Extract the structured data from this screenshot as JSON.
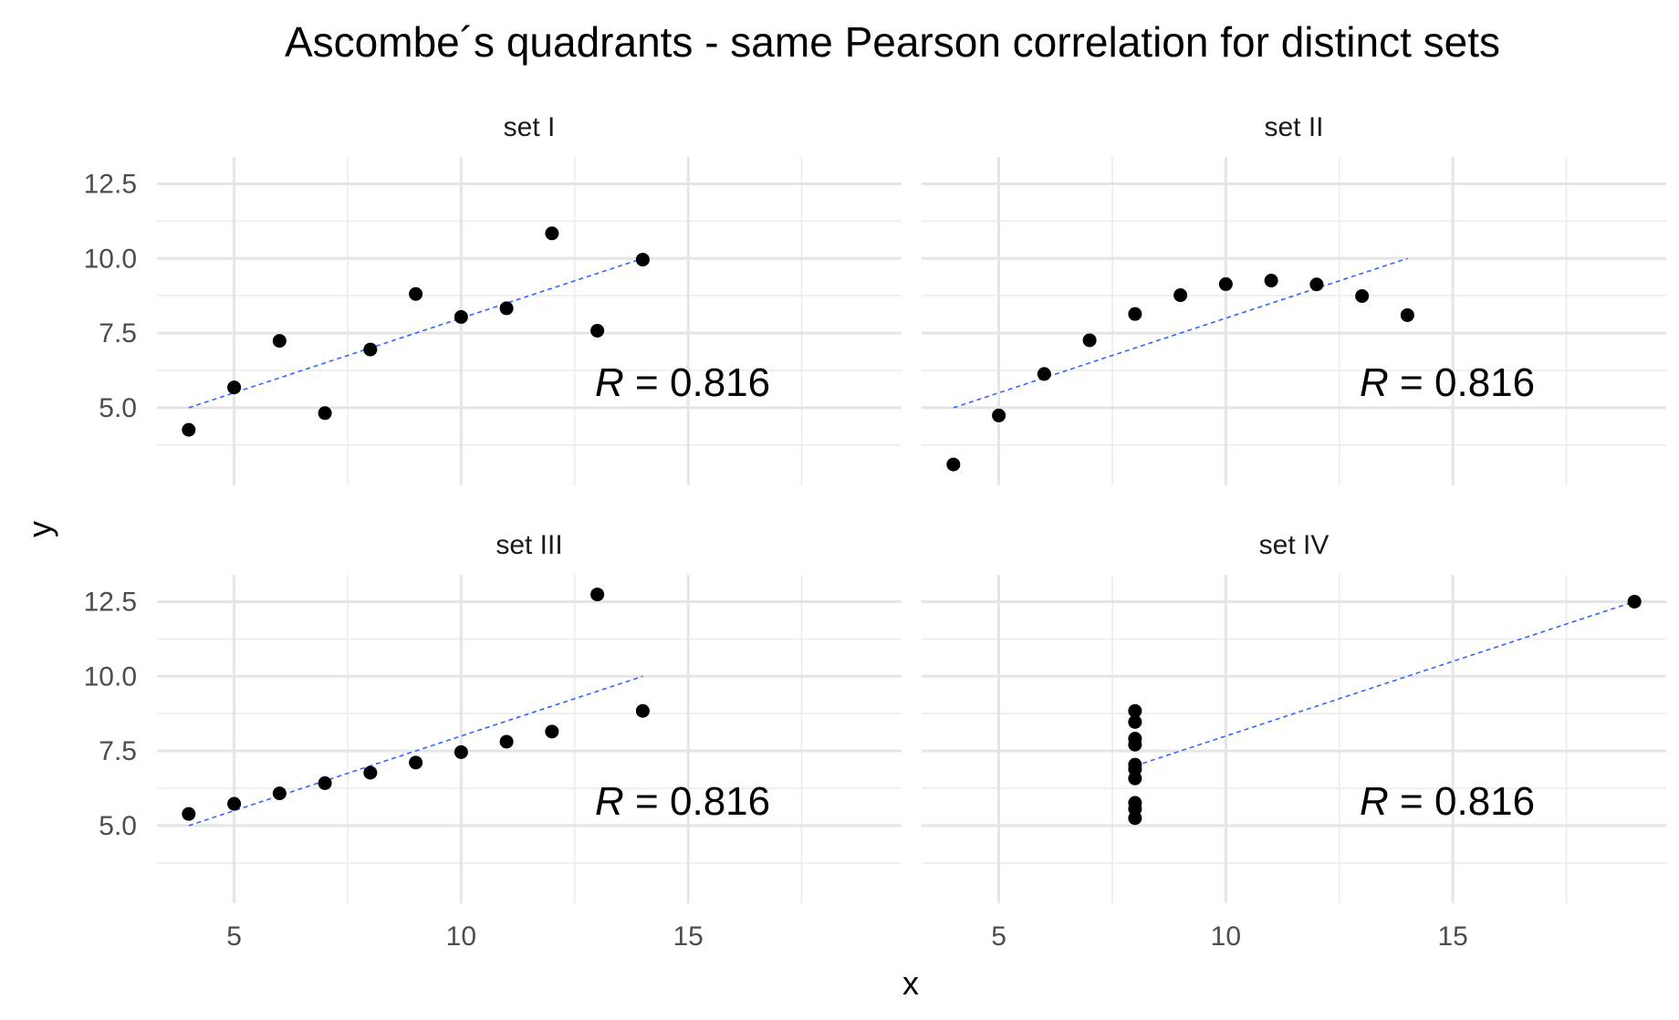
{
  "chart_data": {
    "type": "scatter",
    "title": "Ascombe´s quadrants - same Pearson correlation for distinct sets",
    "xlabel": "x",
    "ylabel": "y",
    "xlim": [
      3.3,
      19.7
    ],
    "ylim": [
      2.4,
      13.4
    ],
    "x_ticks": [
      5,
      10,
      15
    ],
    "y_ticks": [
      5.0,
      7.5,
      10.0,
      12.5
    ],
    "x_tick_labels": [
      "5",
      "10",
      "15"
    ],
    "y_tick_labels": [
      "5.0",
      "7.5",
      "10.0",
      "12.5"
    ],
    "grid": true,
    "legend": "none",
    "point_color": "#000000",
    "fit_line_color": "#3366FF",
    "panels": [
      {
        "name": "set I",
        "annotation": {
          "var": "R",
          "eq": "=",
          "value": "0.816"
        },
        "x": [
          10,
          8,
          13,
          9,
          11,
          14,
          6,
          4,
          12,
          7,
          5
        ],
        "y": [
          8.04,
          6.95,
          7.58,
          8.81,
          8.33,
          9.96,
          7.24,
          4.26,
          10.84,
          4.82,
          5.68
        ],
        "fit": {
          "x": [
            4,
            14
          ],
          "y": [
            5.0,
            10.0
          ]
        }
      },
      {
        "name": "set II",
        "annotation": {
          "var": "R",
          "eq": "=",
          "value": "0.816"
        },
        "x": [
          10,
          8,
          13,
          9,
          11,
          14,
          6,
          4,
          12,
          7,
          5
        ],
        "y": [
          9.14,
          8.14,
          8.74,
          8.77,
          9.26,
          8.1,
          6.13,
          3.1,
          9.13,
          7.26,
          4.74
        ],
        "fit": {
          "x": [
            4,
            14
          ],
          "y": [
            5.0,
            10.0
          ]
        }
      },
      {
        "name": "set III",
        "annotation": {
          "var": "R",
          "eq": "=",
          "value": "0.816"
        },
        "x": [
          10,
          8,
          13,
          9,
          11,
          14,
          6,
          4,
          12,
          7,
          5
        ],
        "y": [
          7.46,
          6.77,
          12.74,
          7.11,
          7.81,
          8.84,
          6.08,
          5.39,
          8.15,
          6.42,
          5.73
        ],
        "fit": {
          "x": [
            4,
            14
          ],
          "y": [
            5.0,
            10.0
          ]
        }
      },
      {
        "name": "set IV",
        "annotation": {
          "var": "R",
          "eq": "=",
          "value": "0.816"
        },
        "x": [
          8,
          8,
          8,
          8,
          8,
          8,
          8,
          19,
          8,
          8,
          8
        ],
        "y": [
          6.58,
          5.76,
          7.71,
          8.84,
          8.47,
          7.04,
          5.25,
          12.5,
          5.56,
          7.91,
          6.89
        ],
        "fit": {
          "x": [
            8,
            19
          ],
          "y": [
            7.0,
            12.5
          ]
        }
      }
    ]
  }
}
